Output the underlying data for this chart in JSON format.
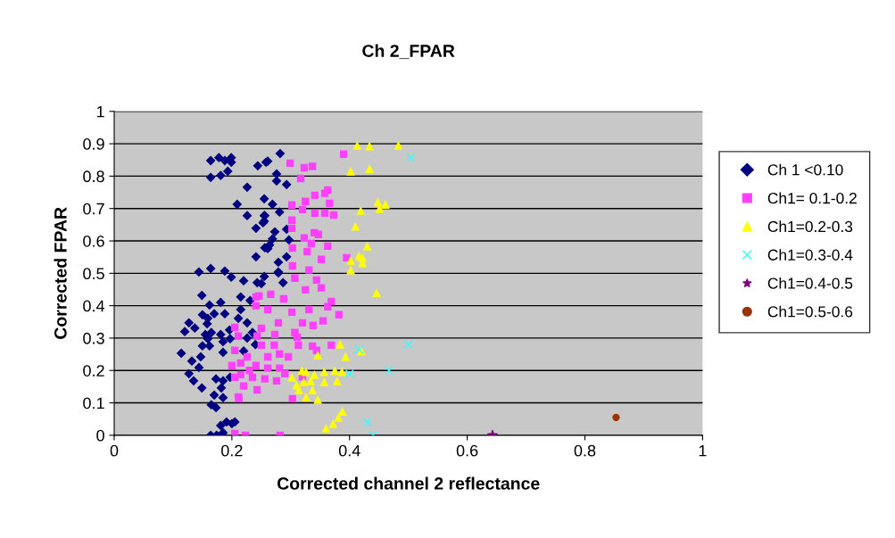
{
  "chart_data": {
    "type": "scatter",
    "title": "Ch 2_FPAR",
    "xlabel": "Corrected channel 2 reflectance",
    "ylabel": "Corrected FPAR",
    "xlim": [
      0,
      1
    ],
    "xticks": [
      0,
      0.2,
      0.4,
      0.6,
      0.8,
      1
    ],
    "ylim": [
      0,
      1
    ],
    "yticks": [
      0,
      0.1,
      0.2,
      0.3,
      0.4,
      0.5,
      0.6,
      0.7,
      0.8,
      0.9,
      1
    ],
    "grid": "y",
    "legend": "right",
    "series": [
      {
        "name": "Ch 1 <0.10",
        "color": "#000080",
        "marker": "diamond",
        "x": [
          0.164,
          0.178,
          0.188,
          0.199,
          0.199,
          0.164,
          0.181,
          0.193,
          0.244,
          0.258,
          0.226,
          0.209,
          0.255,
          0.226,
          0.255,
          0.241,
          0.253,
          0.241,
          0.256,
          0.144,
          0.164,
          0.188,
          0.199,
          0.22,
          0.243,
          0.282,
          0.261,
          0.276,
          0.276,
          0.293,
          0.269,
          0.281,
          0.256,
          0.255,
          0.273,
          0.293,
          0.269,
          0.297,
          0.264,
          0.261,
          0.279,
          0.293,
          0.279,
          0.255,
          0.287,
          0.279,
          0.25,
          0.215,
          0.231,
          0.215,
          0.211,
          0.226,
          0.235,
          0.205,
          0.149,
          0.162,
          0.181,
          0.15,
          0.17,
          0.188,
          0.159,
          0.127,
          0.12,
          0.137,
          0.158,
          0.155,
          0.165,
          0.181,
          0.196,
          0.159,
          0.15,
          0.162,
          0.185,
          0.197,
          0.185,
          0.114,
          0.132,
          0.147,
          0.144,
          0.127,
          0.135,
          0.149,
          0.173,
          0.185,
          0.182,
          0.197,
          0.17,
          0.185,
          0.165,
          0.173,
          0.181,
          0.191,
          0.2,
          0.164,
          0.174,
          0.185,
          0.226,
          0.24,
          0.22
        ],
        "values": [
          0.848,
          0.857,
          0.848,
          0.857,
          0.843,
          0.796,
          0.802,
          0.815,
          0.832,
          0.843,
          0.766,
          0.713,
          0.73,
          0.678,
          0.678,
          0.639,
          0.656,
          0.551,
          0.579,
          0.504,
          0.515,
          0.507,
          0.488,
          0.477,
          0.471,
          0.87,
          0.846,
          0.807,
          0.785,
          0.774,
          0.713,
          0.689,
          0.678,
          0.661,
          0.628,
          0.636,
          0.606,
          0.603,
          0.587,
          0.576,
          0.534,
          0.551,
          0.504,
          0.49,
          0.471,
          0.501,
          0.468,
          0.427,
          0.416,
          0.388,
          0.361,
          0.347,
          0.317,
          0.041,
          0.432,
          0.402,
          0.41,
          0.372,
          0.375,
          0.375,
          0.361,
          0.347,
          0.32,
          0.331,
          0.344,
          0.311,
          0.317,
          0.311,
          0.325,
          0.298,
          0.276,
          0.276,
          0.289,
          0.298,
          0.256,
          0.253,
          0.229,
          0.242,
          0.209,
          0.19,
          0.168,
          0.146,
          0.174,
          0.168,
          0.146,
          0.179,
          0.124,
          0.116,
          0.094,
          0.085,
          0.03,
          0.041,
          0.036,
          0.0,
          0.0,
          0.008,
          0.3,
          0.28,
          0.26
        ]
      },
      {
        "name": "Ch1= 0.1-0.2",
        "color": "#ff40ff",
        "marker": "square",
        "x": [
          0.39,
          0.299,
          0.323,
          0.337,
          0.317,
          0.363,
          0.358,
          0.341,
          0.325,
          0.302,
          0.366,
          0.32,
          0.341,
          0.358,
          0.373,
          0.302,
          0.302,
          0.34,
          0.347,
          0.323,
          0.335,
          0.303,
          0.328,
          0.363,
          0.352,
          0.303,
          0.331,
          0.307,
          0.344,
          0.395,
          0.352,
          0.325,
          0.369,
          0.363,
          0.331,
          0.382,
          0.355,
          0.338,
          0.32,
          0.302,
          0.288,
          0.266,
          0.246,
          0.241,
          0.261,
          0.279,
          0.25,
          0.211,
          0.273,
          0.307,
          0.311,
          0.25,
          0.272,
          0.313,
          0.337,
          0.344,
          0.369,
          0.296,
          0.281,
          0.261,
          0.226,
          0.205,
          0.215,
          0.241,
          0.261,
          0.281,
          0.215,
          0.235,
          0.256,
          0.276,
          0.22,
          0.243,
          0.211,
          0.303,
          0.205,
          0.223,
          0.282,
          0.205,
          0.2,
          0.205,
          0.212,
          0.241,
          0.243,
          0.23,
          0.29,
          0.32
        ],
        "values": [
          0.868,
          0.84,
          0.826,
          0.83,
          0.793,
          0.757,
          0.747,
          0.741,
          0.722,
          0.711,
          0.716,
          0.697,
          0.686,
          0.686,
          0.68,
          0.664,
          0.639,
          0.625,
          0.62,
          0.609,
          0.592,
          0.578,
          0.567,
          0.584,
          0.543,
          0.523,
          0.51,
          0.485,
          0.479,
          0.548,
          0.455,
          0.449,
          0.413,
          0.397,
          0.388,
          0.372,
          0.353,
          0.339,
          0.347,
          0.38,
          0.421,
          0.435,
          0.43,
          0.4,
          0.388,
          0.347,
          0.33,
          0.306,
          0.311,
          0.317,
          0.303,
          0.278,
          0.278,
          0.278,
          0.275,
          0.262,
          0.278,
          0.242,
          0.251,
          0.242,
          0.242,
          0.262,
          0.223,
          0.215,
          0.207,
          0.207,
          0.187,
          0.179,
          0.174,
          0.168,
          0.152,
          0.14,
          0.118,
          0.113,
          0.005,
          0.0,
          0.0,
          0.333,
          0.215,
          0.179,
          0.113,
          0.427,
          0.306,
          0.2,
          0.19,
          0.18
        ]
      },
      {
        "name": "Ch1=0.2-0.3",
        "color": "#ffff00",
        "marker": "triangle",
        "x": [
          0.413,
          0.434,
          0.483,
          0.402,
          0.434,
          0.448,
          0.461,
          0.451,
          0.419,
          0.41,
          0.43,
          0.402,
          0.416,
          0.422,
          0.422,
          0.402,
          0.446,
          0.42,
          0.393,
          0.387,
          0.384,
          0.346,
          0.357,
          0.375,
          0.319,
          0.326,
          0.34,
          0.302,
          0.31,
          0.322,
          0.334,
          0.357,
          0.379,
          0.314,
          0.326,
          0.337,
          0.346,
          0.388,
          0.381,
          0.372,
          0.36
        ],
        "values": [
          0.895,
          0.893,
          0.895,
          0.815,
          0.823,
          0.72,
          0.713,
          0.7,
          0.694,
          0.645,
          0.584,
          0.54,
          0.554,
          0.548,
          0.532,
          0.51,
          0.44,
          0.26,
          0.243,
          0.196,
          0.281,
          0.248,
          0.196,
          0.2,
          0.2,
          0.196,
          0.187,
          0.179,
          0.155,
          0.165,
          0.168,
          0.165,
          0.168,
          0.14,
          0.118,
          0.14,
          0.11,
          0.074,
          0.055,
          0.036,
          0.022
        ]
      },
      {
        "name": "Ch1=0.3-0.4",
        "color": "#33ffff",
        "marker": "cross",
        "x": [
          0.504,
          0.5,
          0.416,
          0.4,
          0.467,
          0.43,
          0.44
        ],
        "values": [
          0.857,
          0.28,
          0.265,
          0.19,
          0.2,
          0.04,
          0.0
        ]
      },
      {
        "name": "Ch1=0.4-0.5",
        "color": "#800080",
        "marker": "star",
        "x": [
          0.643
        ],
        "values": [
          0.0
        ]
      },
      {
        "name": "Ch1=0.5-0.6",
        "color": "#993300",
        "marker": "circle",
        "x": [
          0.853
        ],
        "values": [
          0.055
        ]
      }
    ]
  }
}
